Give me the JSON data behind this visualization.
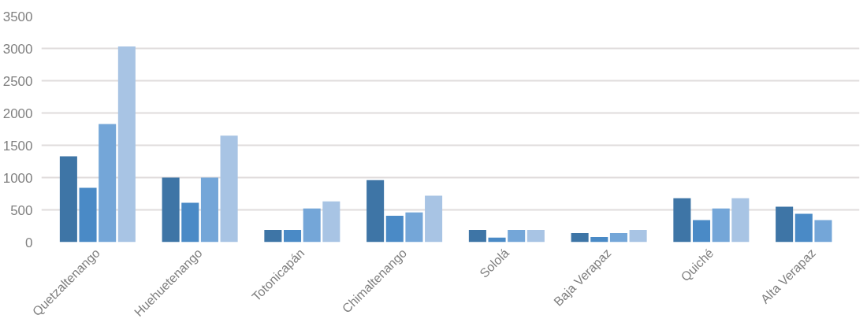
{
  "chart_data": {
    "type": "bar",
    "categories": [
      "Quetzaltenango",
      "Huehuetenango",
      "Totonicapán",
      "Chimaltenango",
      "Sololá",
      "Baja Verapaz",
      "Quiché",
      "Alta Verapaz"
    ],
    "series": [
      {
        "color": "#3e75a6",
        "values": [
          1330,
          1000,
          190,
          960,
          190,
          140,
          680,
          550
        ]
      },
      {
        "color": "#4a8ac6",
        "values": [
          840,
          610,
          190,
          410,
          70,
          80,
          340,
          440
        ]
      },
      {
        "color": "#74a6d8",
        "values": [
          1830,
          1000,
          520,
          460,
          190,
          140,
          520,
          340
        ]
      },
      {
        "color": "#a8c4e4",
        "values": [
          3030,
          1650,
          630,
          720,
          190,
          190,
          680,
          null
        ]
      }
    ],
    "ylim": [
      0,
      3500
    ],
    "yticks": [
      0,
      500,
      1000,
      1500,
      2000,
      2500,
      3000,
      3500
    ],
    "grid": "y"
  }
}
